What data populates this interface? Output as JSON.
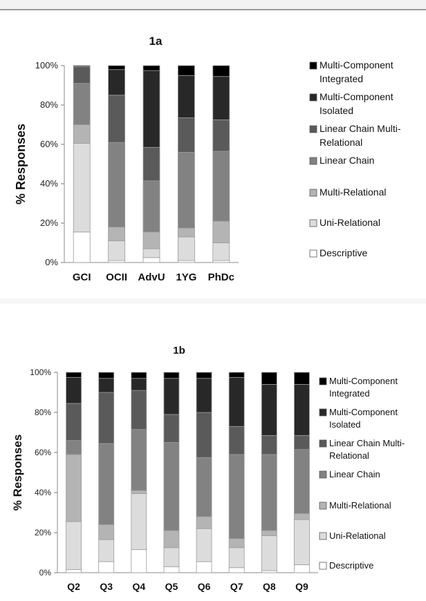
{
  "chart_data": [
    {
      "type": "bar",
      "stacked": true,
      "title": "1a",
      "ylabel": "% Responses",
      "xlabel": "",
      "ylim": [
        0,
        100
      ],
      "yticks": [
        "0%",
        "20%",
        "40%",
        "60%",
        "80%",
        "100%"
      ],
      "categories": [
        "GCI",
        "OCII",
        "AdvU",
        "1YG",
        "PhDc"
      ],
      "legend_position": "right",
      "series": [
        {
          "name": "Descriptive",
          "color": "#ffffff",
          "values": [
            15.5,
            1,
            2.5,
            1,
            1
          ]
        },
        {
          "name": "Uni-Relational",
          "color": "#dcdcdc",
          "values": [
            45,
            10,
            4.5,
            12,
            9
          ]
        },
        {
          "name": "Multi-Relational",
          "color": "#b4b4b4",
          "values": [
            9.5,
            7,
            8.5,
            4.5,
            11
          ]
        },
        {
          "name": "Linear Chain",
          "color": "#828282",
          "values": [
            21,
            43,
            26,
            38.5,
            35.5
          ]
        },
        {
          "name": "Linear Chain Multi-Relational",
          "color": "#5a5a5a",
          "values": [
            8.5,
            24,
            17,
            17.5,
            16
          ]
        },
        {
          "name": "Multi-Component Isolated",
          "color": "#282828",
          "values": [
            0.5,
            13,
            39,
            21.5,
            22
          ]
        },
        {
          "name": "Multi-Component Integrated",
          "color": "#000000",
          "values": [
            0,
            2,
            2.5,
            5,
            5.5
          ]
        }
      ],
      "legend_lines": [
        [
          "Multi-Component",
          "Integrated"
        ],
        [
          "Multi-Component",
          "Isolated"
        ],
        [
          "Linear Chain Multi-",
          "Relational"
        ],
        [
          "Linear Chain"
        ],
        [
          "Multi-Relational"
        ],
        [
          "Uni-Relational"
        ],
        [
          "Descriptive"
        ]
      ]
    },
    {
      "type": "bar",
      "stacked": true,
      "title": "1b",
      "ylabel": "% Responses",
      "xlabel": "",
      "ylim": [
        0,
        100
      ],
      "yticks": [
        "0%",
        "20%",
        "40%",
        "60%",
        "80%",
        "100%"
      ],
      "categories": [
        "Q2",
        "Q3",
        "Q4",
        "Q5",
        "Q6",
        "Q7",
        "Q8",
        "Q9"
      ],
      "legend_position": "right",
      "series": [
        {
          "name": "Descriptive",
          "color": "#ffffff",
          "values": [
            1.5,
            5.5,
            11.5,
            3,
            5.5,
            2.5,
            1,
            4
          ]
        },
        {
          "name": "Uni-Relational",
          "color": "#dcdcdc",
          "values": [
            24,
            11,
            28,
            9.5,
            16.5,
            10,
            17.5,
            22.5
          ]
        },
        {
          "name": "Multi-Relational",
          "color": "#b4b4b4",
          "values": [
            33.5,
            7.5,
            1.5,
            8.5,
            6,
            4.5,
            2.5,
            3
          ]
        },
        {
          "name": "Linear Chain",
          "color": "#828282",
          "values": [
            7,
            40.5,
            30.5,
            44,
            29.5,
            42,
            38,
            32
          ]
        },
        {
          "name": "Linear Chain Multi-Relational",
          "color": "#5a5a5a",
          "values": [
            18.5,
            25.5,
            19.5,
            14,
            22.5,
            14,
            9.5,
            7
          ]
        },
        {
          "name": "Multi-Component Isolated",
          "color": "#282828",
          "values": [
            13,
            7,
            6,
            18,
            17,
            24.5,
            25.5,
            25.5
          ]
        },
        {
          "name": "Multi-Component Integrated",
          "color": "#000000",
          "values": [
            2.5,
            3,
            3,
            3,
            3,
            2.5,
            6,
            6
          ]
        }
      ],
      "legend_lines": [
        [
          "Multi-Component",
          "Integrated"
        ],
        [
          "Multi-Component",
          "Isolated"
        ],
        [
          "Linear Chain Multi-",
          "Relational"
        ],
        [
          "Linear Chain"
        ],
        [
          "Multi-Relational"
        ],
        [
          "Uni-Relational"
        ],
        [
          "Descriptive"
        ]
      ]
    }
  ]
}
